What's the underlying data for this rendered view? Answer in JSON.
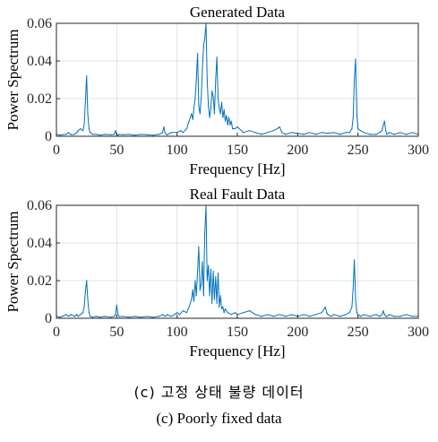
{
  "chart_data": [
    {
      "type": "line",
      "title": "Generated Data",
      "xlabel": "Frequency [Hz]",
      "ylabel": "Power Spectrum",
      "xlim": [
        0,
        300
      ],
      "ylim": [
        0,
        0.06
      ],
      "xticks": [
        "0",
        "50",
        "100",
        "150",
        "200",
        "250",
        "300"
      ],
      "yticks": [
        "0",
        "0.02",
        "0.04",
        "0.06"
      ],
      "grid": true,
      "color": "#0072BD",
      "series": [
        {
          "x": [
            0,
            3,
            5,
            8,
            10,
            12,
            15,
            17,
            18,
            20,
            22,
            23,
            24,
            25,
            26,
            27,
            28,
            30,
            33,
            36,
            40,
            45,
            48,
            49,
            50,
            51,
            52,
            55,
            60,
            65,
            70,
            75,
            80,
            85,
            88,
            89,
            90,
            91,
            92,
            95,
            100,
            103,
            105,
            108,
            110,
            112,
            113,
            114,
            115,
            116,
            117,
            118,
            119,
            120,
            121,
            122,
            123,
            124,
            125,
            126,
            127,
            128,
            129,
            130,
            131,
            132,
            133,
            134,
            135,
            136,
            137,
            138,
            139,
            140,
            141,
            142,
            143,
            144,
            145,
            146,
            148,
            150,
            155,
            160,
            165,
            170,
            175,
            180,
            183,
            185,
            187,
            190,
            195,
            200,
            205,
            210,
            215,
            220,
            225,
            230,
            235,
            240,
            243,
            245,
            246,
            247,
            248,
            249,
            250,
            252,
            255,
            260,
            265,
            268,
            270,
            271,
            272,
            273,
            274,
            276,
            280,
            285,
            290,
            295,
            300
          ],
          "y": [
            0.001,
            0.0005,
            0.0008,
            0.001,
            0.002,
            0.0008,
            0.001,
            0.002,
            0.003,
            0.004,
            0.003,
            0.006,
            0.018,
            0.032,
            0.012,
            0.004,
            0.002,
            0.001,
            0.001,
            0.0005,
            0.001,
            0.0008,
            0.001,
            0.003,
            0.001,
            0.0005,
            0.001,
            0.0008,
            0.001,
            0.0005,
            0.001,
            0.0008,
            0.0005,
            0.001,
            0.002,
            0.005,
            0.002,
            0.001,
            0.0008,
            0.002,
            0.002,
            0.003,
            0.002,
            0.004,
            0.008,
            0.012,
            0.009,
            0.015,
            0.02,
            0.03,
            0.044,
            0.016,
            0.012,
            0.02,
            0.035,
            0.048,
            0.052,
            0.06,
            0.03,
            0.016,
            0.01,
            0.015,
            0.024,
            0.021,
            0.012,
            0.03,
            0.042,
            0.02,
            0.015,
            0.012,
            0.018,
            0.01,
            0.014,
            0.008,
            0.011,
            0.006,
            0.01,
            0.006,
            0.008,
            0.004,
            0.004,
            0.005,
            0.002,
            0.003,
            0.002,
            0.001,
            0.002,
            0.003,
            0.004,
            0.005,
            0.002,
            0.001,
            0.002,
            0.0015,
            0.001,
            0.002,
            0.001,
            0.002,
            0.0015,
            0.002,
            0.001,
            0.002,
            0.002,
            0.004,
            0.01,
            0.03,
            0.041,
            0.012,
            0.004,
            0.003,
            0.002,
            0.001,
            0.001,
            0.002,
            0.003,
            0.006,
            0.008,
            0.003,
            0.001,
            0.002,
            0.001,
            0.002,
            0.001,
            0.002,
            0.001
          ]
        }
      ]
    },
    {
      "type": "line",
      "title": "Real Fault Data",
      "xlabel": "Frequency [Hz]",
      "ylabel": "Power Spectrum",
      "xlim": [
        0,
        300
      ],
      "ylim": [
        0,
        0.06
      ],
      "xticks": [
        "0",
        "50",
        "100",
        "150",
        "200",
        "250",
        "300"
      ],
      "yticks": [
        "0",
        "0.02",
        "0.04",
        "0.06"
      ],
      "grid": true,
      "color": "#0072BD",
      "series": [
        {
          "x": [
            0,
            3,
            5,
            8,
            10,
            12,
            15,
            17,
            18,
            20,
            22,
            23,
            24,
            25,
            26,
            27,
            28,
            30,
            33,
            36,
            40,
            45,
            48,
            49,
            50,
            51,
            52,
            55,
            60,
            65,
            70,
            75,
            80,
            85,
            88,
            90,
            92,
            95,
            98,
            100,
            102,
            105,
            108,
            110,
            112,
            113,
            114,
            115,
            116,
            117,
            118,
            119,
            120,
            121,
            122,
            123,
            124,
            125,
            126,
            127,
            128,
            129,
            130,
            131,
            132,
            133,
            134,
            135,
            136,
            137,
            138,
            139,
            140,
            142,
            145,
            148,
            150,
            155,
            160,
            165,
            170,
            175,
            180,
            185,
            190,
            195,
            200,
            205,
            210,
            215,
            220,
            222,
            223,
            224,
            225,
            228,
            230,
            235,
            240,
            243,
            245,
            246,
            247,
            248,
            249,
            250,
            252,
            255,
            260,
            265,
            268,
            270,
            271,
            272,
            273,
            274,
            276,
            280,
            285,
            290,
            295,
            300
          ],
          "y": [
            0.001,
            0.0005,
            0.001,
            0.002,
            0.001,
            0.002,
            0.001,
            0.002,
            0.001,
            0.002,
            0.003,
            0.006,
            0.014,
            0.02,
            0.01,
            0.003,
            0.001,
            0.0005,
            0.001,
            0.0005,
            0.001,
            0.0005,
            0.001,
            0.002,
            0.007,
            0.002,
            0.0008,
            0.001,
            0.0005,
            0.001,
            0.0005,
            0.001,
            0.0005,
            0.001,
            0.002,
            0.001,
            0.002,
            0.001,
            0.002,
            0.003,
            0.002,
            0.004,
            0.003,
            0.006,
            0.01,
            0.015,
            0.009,
            0.02,
            0.012,
            0.025,
            0.038,
            0.015,
            0.018,
            0.03,
            0.012,
            0.045,
            0.06,
            0.02,
            0.028,
            0.012,
            0.026,
            0.008,
            0.025,
            0.01,
            0.022,
            0.008,
            0.024,
            0.006,
            0.012,
            0.005,
            0.006,
            0.003,
            0.005,
            0.003,
            0.002,
            0.003,
            0.002,
            0.003,
            0.004,
            0.002,
            0.001,
            0.002,
            0.001,
            0.002,
            0.001,
            0.002,
            0.001,
            0.002,
            0.001,
            0.002,
            0.003,
            0.005,
            0.006,
            0.003,
            0.002,
            0.001,
            0.002,
            0.001,
            0.002,
            0.003,
            0.006,
            0.016,
            0.031,
            0.01,
            0.003,
            0.002,
            0.001,
            0.002,
            0.001,
            0.002,
            0.001,
            0.002,
            0.004,
            0.002,
            0.001,
            0.001,
            0.002,
            0.001,
            0.001,
            0.002,
            0.001,
            0.001
          ]
        }
      ]
    }
  ],
  "captions": {
    "korean": "(c) 고정 상태 불량 데이터",
    "english": "(c) Poorly fixed data"
  }
}
